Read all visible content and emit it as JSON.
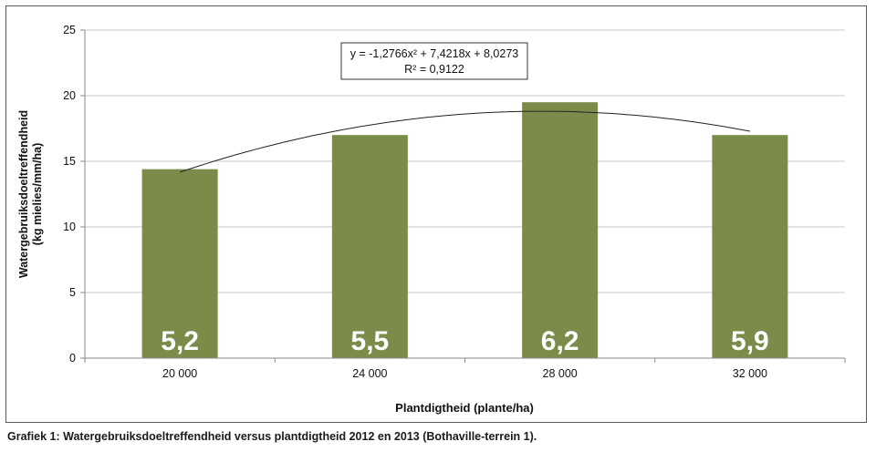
{
  "caption": "Grafiek 1: Watergebruiksdoeltreffendheid versus plantdigtheid 2012 en 2013 (Bothaville-terrein 1).",
  "chart_data": {
    "type": "bar",
    "categories": [
      "20 000",
      "24 000",
      "28 000",
      "32 000"
    ],
    "values": [
      14.4,
      17.0,
      19.5,
      17.0
    ],
    "bar_labels": [
      "5,2",
      "5,5",
      "6,2",
      "5,9"
    ],
    "xlabel": "Plantdigtheid (plante/ha)",
    "ylabel_line1": "Watergebruiksdoeltreffendheid",
    "ylabel_line2": "(kg mielies/mm/ha)",
    "ylim": [
      0,
      25
    ],
    "yticks": [
      "0",
      "5",
      "10",
      "15",
      "20",
      "25"
    ],
    "grid": true,
    "trendline": {
      "type": "polynomial-2",
      "coefficients": [
        -1.2766,
        7.4218,
        8.0273
      ],
      "equation": "y = -1,2766x² + 7,4218x + 8,0273",
      "r_squared": "R² = 0,9122"
    },
    "colors": {
      "bar": "#7b8c4a",
      "bar_label": "#ffffff",
      "grid": "#c9c9c9",
      "axis": "#8a8a8a",
      "trend": "#222222"
    }
  }
}
